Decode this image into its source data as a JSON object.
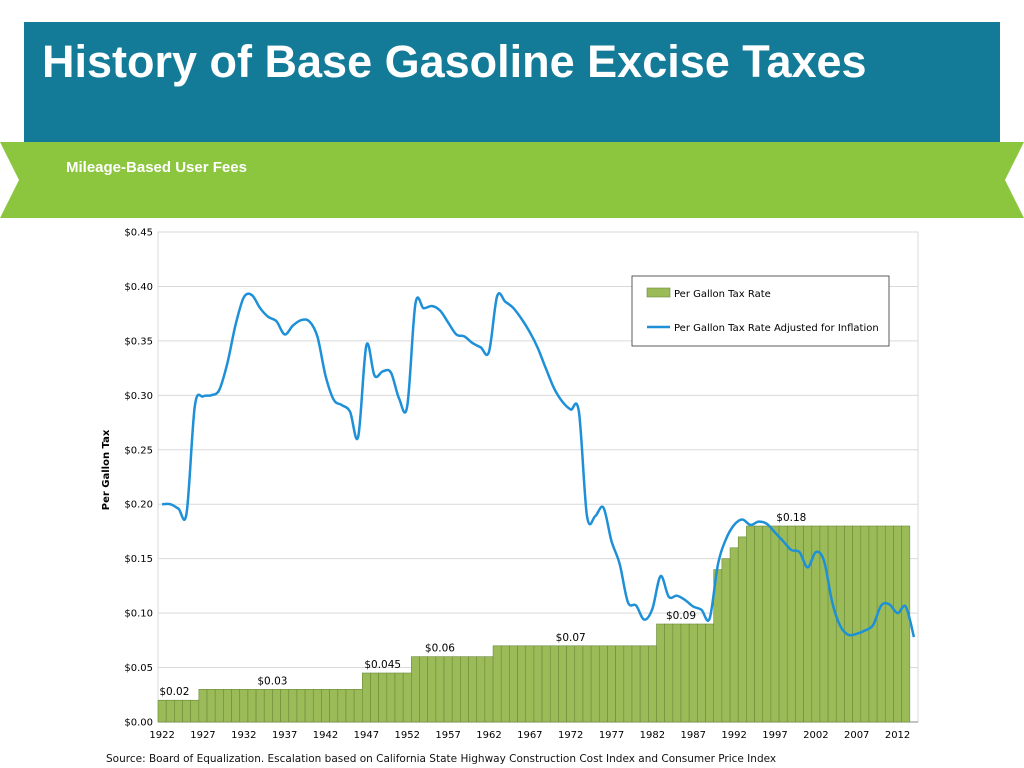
{
  "slide": {
    "title": "History of Base Gasoline Excise Taxes",
    "subtitle": "Mileage-Based User Fees",
    "source": "Source: Board of Equalization. Escalation based on California State Highway Construction Cost Index and Consumer Price Index"
  },
  "colors": {
    "title_bar": "#137b98",
    "ribbon": "#8cc63e",
    "bar_fill": "#9bbb59",
    "bar_stroke": "#6c8a3a",
    "line": "#1e90d8"
  },
  "chart_data": {
    "type": "bar",
    "ylabel": "Per Gallon Tax",
    "ylim": [
      0,
      0.45
    ],
    "y_ticks": [
      {
        "value": 0.0,
        "label": "$0.00"
      },
      {
        "value": 0.05,
        "label": "$0.05"
      },
      {
        "value": 0.1,
        "label": "$0.10"
      },
      {
        "value": 0.15,
        "label": "$0.15"
      },
      {
        "value": 0.2,
        "label": "$0.20"
      },
      {
        "value": 0.25,
        "label": "$0.25"
      },
      {
        "value": 0.3,
        "label": "$0.30"
      },
      {
        "value": 0.35,
        "label": "$0.35"
      },
      {
        "value": 0.4,
        "label": "$0.40"
      },
      {
        "value": 0.45,
        "label": "$0.45"
      }
    ],
    "x_range": [
      1922,
      2013
    ],
    "x_ticks": [
      1922,
      1927,
      1932,
      1937,
      1942,
      1947,
      1952,
      1957,
      1962,
      1967,
      1972,
      1977,
      1982,
      1987,
      1992,
      1997,
      2002,
      2007,
      2012
    ],
    "grid": true,
    "legend_position": "top-right",
    "series": [
      {
        "name": "Per Gallon Tax Rate",
        "type": "bar",
        "steps": [
          {
            "from": 1922,
            "to": 1926,
            "value": 0.02
          },
          {
            "from": 1927,
            "to": 1946,
            "value": 0.03
          },
          {
            "from": 1947,
            "to": 1952,
            "value": 0.045
          },
          {
            "from": 1953,
            "to": 1962,
            "value": 0.06
          },
          {
            "from": 1963,
            "to": 1982,
            "value": 0.07
          },
          {
            "from": 1983,
            "to": 1989,
            "value": 0.09
          },
          {
            "from": 1990,
            "to": 1990,
            "value": 0.14
          },
          {
            "from": 1991,
            "to": 1991,
            "value": 0.15
          },
          {
            "from": 1992,
            "to": 1992,
            "value": 0.16
          },
          {
            "from": 1993,
            "to": 1993,
            "value": 0.17
          },
          {
            "from": 1994,
            "to": 2013,
            "value": 0.18
          }
        ]
      },
      {
        "name": "Per Gallon Tax Rate Adjusted for Inflation",
        "type": "line",
        "points": [
          [
            1922,
            0.2
          ],
          [
            1923,
            0.2
          ],
          [
            1924,
            0.196
          ],
          [
            1925,
            0.192
          ],
          [
            1926,
            0.29
          ],
          [
            1927,
            0.299
          ],
          [
            1928,
            0.3
          ],
          [
            1929,
            0.305
          ],
          [
            1930,
            0.33
          ],
          [
            1931,
            0.365
          ],
          [
            1932,
            0.39
          ],
          [
            1933,
            0.392
          ],
          [
            1934,
            0.38
          ],
          [
            1935,
            0.372
          ],
          [
            1936,
            0.368
          ],
          [
            1937,
            0.356
          ],
          [
            1938,
            0.364
          ],
          [
            1939,
            0.369
          ],
          [
            1940,
            0.368
          ],
          [
            1941,
            0.354
          ],
          [
            1942,
            0.318
          ],
          [
            1943,
            0.296
          ],
          [
            1944,
            0.291
          ],
          [
            1945,
            0.285
          ],
          [
            1946,
            0.262
          ],
          [
            1947,
            0.346
          ],
          [
            1948,
            0.318
          ],
          [
            1949,
            0.322
          ],
          [
            1950,
            0.321
          ],
          [
            1951,
            0.297
          ],
          [
            1952,
            0.29
          ],
          [
            1953,
            0.384
          ],
          [
            1954,
            0.38
          ],
          [
            1955,
            0.382
          ],
          [
            1956,
            0.378
          ],
          [
            1957,
            0.367
          ],
          [
            1958,
            0.356
          ],
          [
            1959,
            0.354
          ],
          [
            1960,
            0.348
          ],
          [
            1961,
            0.344
          ],
          [
            1962,
            0.34
          ],
          [
            1963,
            0.391
          ],
          [
            1964,
            0.386
          ],
          [
            1965,
            0.38
          ],
          [
            1966,
            0.37
          ],
          [
            1967,
            0.358
          ],
          [
            1968,
            0.343
          ],
          [
            1969,
            0.324
          ],
          [
            1970,
            0.306
          ],
          [
            1971,
            0.294
          ],
          [
            1972,
            0.287
          ],
          [
            1973,
            0.285
          ],
          [
            1974,
            0.189
          ],
          [
            1975,
            0.189
          ],
          [
            1976,
            0.197
          ],
          [
            1977,
            0.166
          ],
          [
            1978,
            0.145
          ],
          [
            1979,
            0.11
          ],
          [
            1980,
            0.107
          ],
          [
            1981,
            0.094
          ],
          [
            1982,
            0.104
          ],
          [
            1983,
            0.134
          ],
          [
            1984,
            0.115
          ],
          [
            1985,
            0.116
          ],
          [
            1986,
            0.112
          ],
          [
            1987,
            0.106
          ],
          [
            1988,
            0.103
          ],
          [
            1989,
            0.095
          ],
          [
            1990,
            0.144
          ],
          [
            1991,
            0.168
          ],
          [
            1992,
            0.181
          ],
          [
            1993,
            0.186
          ],
          [
            1994,
            0.181
          ],
          [
            1995,
            0.184
          ],
          [
            1996,
            0.182
          ],
          [
            1997,
            0.174
          ],
          [
            1998,
            0.166
          ],
          [
            1999,
            0.158
          ],
          [
            2000,
            0.156
          ],
          [
            2001,
            0.142
          ],
          [
            2002,
            0.156
          ],
          [
            2003,
            0.148
          ],
          [
            2004,
            0.11
          ],
          [
            2005,
            0.088
          ],
          [
            2006,
            0.08
          ],
          [
            2007,
            0.081
          ],
          [
            2008,
            0.084
          ],
          [
            2009,
            0.089
          ],
          [
            2010,
            0.107
          ],
          [
            2011,
            0.108
          ],
          [
            2012,
            0.1
          ],
          [
            2013,
            0.106
          ],
          [
            2014,
            0.078
          ]
        ]
      }
    ],
    "annotations": [
      {
        "label": "$0.02",
        "x": 1923.5,
        "y": 0.02
      },
      {
        "label": "$0.03",
        "x": 1935.5,
        "y": 0.03
      },
      {
        "label": "$0.045",
        "x": 1949,
        "y": 0.045
      },
      {
        "label": "$0.06",
        "x": 1956,
        "y": 0.06
      },
      {
        "label": "$0.07",
        "x": 1972,
        "y": 0.07
      },
      {
        "label": "$0.09",
        "x": 1985.5,
        "y": 0.09
      },
      {
        "label": "$0.18",
        "x": 1999,
        "y": 0.18
      }
    ]
  }
}
